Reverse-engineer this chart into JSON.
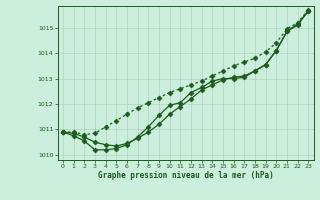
{
  "title": "Graphe pression niveau de la mer (hPa)",
  "bg_color": "#cceedd",
  "line_color": "#1a5e1a",
  "hours": [
    0,
    1,
    2,
    3,
    4,
    5,
    6,
    7,
    8,
    9,
    10,
    11,
    12,
    13,
    14,
    15,
    16,
    17,
    18,
    19,
    20,
    21,
    22,
    23
  ],
  "line_upper": [
    1010.9,
    1010.9,
    1010.8,
    1010.85,
    1011.1,
    1011.35,
    1011.6,
    1011.85,
    1012.05,
    1012.25,
    1012.45,
    1012.6,
    1012.75,
    1012.9,
    1013.1,
    1013.3,
    1013.5,
    1013.65,
    1013.8,
    1014.05,
    1014.4,
    1014.95,
    1015.2,
    1015.7
  ],
  "line_mid": [
    1010.9,
    1010.85,
    1010.7,
    1010.5,
    1010.4,
    1010.35,
    1010.45,
    1010.65,
    1010.9,
    1011.2,
    1011.6,
    1011.9,
    1012.2,
    1012.55,
    1012.75,
    1012.95,
    1013.05,
    1013.1,
    1013.3,
    1013.55,
    1014.1,
    1014.85,
    1015.15,
    1015.65
  ],
  "line_low": [
    1010.9,
    1010.75,
    1010.55,
    1010.2,
    1010.2,
    1010.25,
    1010.4,
    1010.7,
    1011.1,
    1011.55,
    1011.95,
    1012.05,
    1012.45,
    1012.65,
    1012.9,
    1013.0,
    1013.0,
    1013.05,
    1013.3,
    1013.55,
    1014.1,
    1014.85,
    1015.1,
    1015.65
  ],
  "ylim": [
    1009.8,
    1015.85
  ],
  "yticks": [
    1010,
    1011,
    1012,
    1013,
    1014,
    1015
  ],
  "xlim": [
    -0.5,
    23.5
  ],
  "xticks": [
    0,
    1,
    2,
    3,
    4,
    5,
    6,
    7,
    8,
    9,
    10,
    11,
    12,
    13,
    14,
    15,
    16,
    17,
    18,
    19,
    20,
    21,
    22,
    23
  ],
  "figsize": [
    3.2,
    2.0
  ],
  "dpi": 100
}
